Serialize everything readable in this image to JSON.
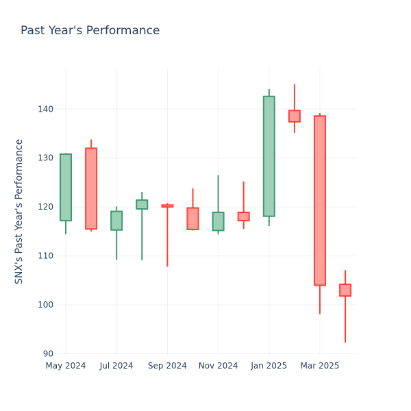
{
  "chart_data": {
    "type": "candlestick",
    "title": "Past Year's Performance",
    "xlabel": "",
    "ylabel": "SNX's Past Year's Performance",
    "ylim": [
      89.5,
      148.3
    ],
    "yticks": [
      90,
      100,
      110,
      120,
      130,
      140
    ],
    "xticks": [
      "May 2024",
      "Jul 2024",
      "Sep 2024",
      "Nov 2024",
      "Jan 2025",
      "Mar 2025"
    ],
    "colors": {
      "up": "#3d9970",
      "up_fill": "#9ecfb7",
      "down": "#ff4136",
      "down_fill": "#ff9f9a",
      "grid": "#eef0f4",
      "text": "#2a3f5f"
    },
    "candles": [
      {
        "date": "2024-05",
        "open": 117.2,
        "high": 131.0,
        "low": 114.4,
        "close": 130.8
      },
      {
        "date": "2024-06",
        "open": 132.0,
        "high": 133.8,
        "low": 115.0,
        "close": 115.5
      },
      {
        "date": "2024-07",
        "open": 115.3,
        "high": 120.1,
        "low": 109.2,
        "close": 119.1
      },
      {
        "date": "2024-08",
        "open": 119.6,
        "high": 123.1,
        "low": 109.1,
        "close": 121.4
      },
      {
        "date": "2024-09",
        "open": 120.4,
        "high": 120.8,
        "low": 107.8,
        "close": 120.0
      },
      {
        "date": "2024-10",
        "open": 119.8,
        "high": 123.8,
        "low": 115.2,
        "close": 115.4
      },
      {
        "date": "2024-11",
        "open": 115.2,
        "high": 126.5,
        "low": 114.4,
        "close": 118.9
      },
      {
        "date": "2024-12",
        "open": 118.9,
        "high": 125.2,
        "low": 115.5,
        "close": 117.2
      },
      {
        "date": "2025-01",
        "open": 118.1,
        "high": 144.1,
        "low": 116.1,
        "close": 142.6
      },
      {
        "date": "2025-02",
        "open": 139.7,
        "high": 145.1,
        "low": 135.1,
        "close": 137.4
      },
      {
        "date": "2025-03",
        "open": 138.6,
        "high": 139.2,
        "low": 98.1,
        "close": 104.0
      },
      {
        "date": "2025-04",
        "open": 104.2,
        "high": 107.1,
        "low": 92.3,
        "close": 101.8
      }
    ]
  }
}
